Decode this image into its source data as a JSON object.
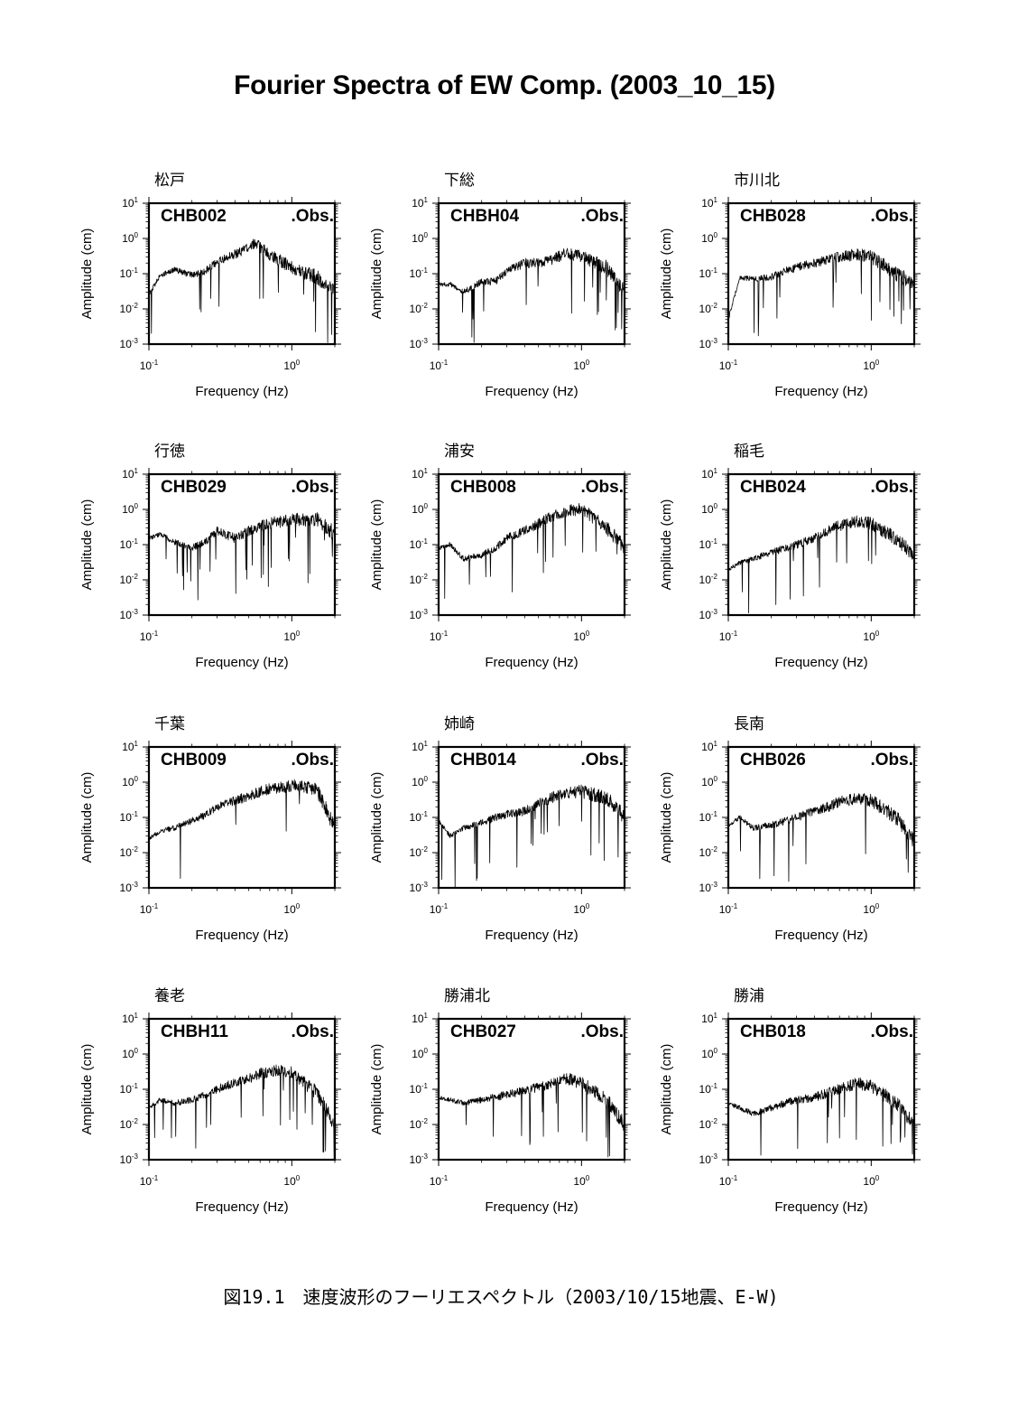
{
  "title": "Fourier Spectra of EW Comp. (2003_10_15)",
  "caption": "図19.1　速度波形のフーリエスペクトル（2003/10/15地震、E-W)",
  "axes": {
    "xlabel": "Frequency (Hz)",
    "ylabel": "Amplitude (cm)",
    "x_scale": "log",
    "y_scale": "log",
    "xlim": [
      0.1,
      2.0
    ],
    "ylim": [
      0.001,
      10
    ],
    "x_tick_labels": [
      {
        "base": "10",
        "exp": "-1"
      },
      {
        "base": "10",
        "exp": "0"
      }
    ],
    "y_tick_labels": [
      {
        "base": "10",
        "exp": "1"
      },
      {
        "base": "10",
        "exp": "0"
      },
      {
        "base": "10",
        "exp": "-1"
      },
      {
        "base": "10",
        "exp": "-2"
      },
      {
        "base": "10",
        "exp": "-3"
      }
    ],
    "series_label": ".Obs."
  },
  "chart_data": [
    {
      "type": "line",
      "station": "松戸",
      "code": "CHB002",
      "x": [
        0.1,
        0.12,
        0.15,
        0.2,
        0.25,
        0.3,
        0.4,
        0.5,
        0.55,
        0.7,
        1.0,
        1.5,
        2.0
      ],
      "y": [
        0.025,
        0.09,
        0.13,
        0.09,
        0.12,
        0.22,
        0.35,
        0.55,
        0.75,
        0.35,
        0.15,
        0.08,
        0.03
      ]
    },
    {
      "type": "line",
      "station": "下総",
      "code": "CHBH04",
      "x": [
        0.1,
        0.12,
        0.15,
        0.2,
        0.25,
        0.3,
        0.4,
        0.5,
        0.6,
        0.8,
        1.0,
        1.5,
        2.0
      ],
      "y": [
        0.05,
        0.05,
        0.03,
        0.06,
        0.06,
        0.12,
        0.2,
        0.2,
        0.22,
        0.4,
        0.3,
        0.15,
        0.03
      ]
    },
    {
      "type": "line",
      "station": "市川北",
      "code": "CHB028",
      "x": [
        0.1,
        0.12,
        0.15,
        0.2,
        0.25,
        0.3,
        0.4,
        0.5,
        0.6,
        0.8,
        1.0,
        1.5,
        2.0
      ],
      "y": [
        0.005,
        0.08,
        0.07,
        0.08,
        0.12,
        0.15,
        0.2,
        0.25,
        0.3,
        0.35,
        0.3,
        0.1,
        0.05
      ]
    },
    {
      "type": "line",
      "station": "行徳",
      "code": "CHB029",
      "x": [
        0.1,
        0.12,
        0.15,
        0.2,
        0.25,
        0.3,
        0.4,
        0.5,
        0.6,
        0.8,
        1.0,
        1.5,
        2.0
      ],
      "y": [
        0.15,
        0.2,
        0.12,
        0.08,
        0.12,
        0.25,
        0.15,
        0.25,
        0.35,
        0.45,
        0.5,
        0.55,
        0.2
      ]
    },
    {
      "type": "line",
      "station": "浦安",
      "code": "CHB008",
      "x": [
        0.1,
        0.12,
        0.15,
        0.2,
        0.25,
        0.3,
        0.4,
        0.5,
        0.6,
        0.8,
        1.0,
        1.5,
        2.0
      ],
      "y": [
        0.08,
        0.1,
        0.04,
        0.05,
        0.08,
        0.15,
        0.25,
        0.4,
        0.6,
        0.9,
        1.0,
        0.3,
        0.08
      ]
    },
    {
      "type": "line",
      "station": "稲毛",
      "code": "CHB024",
      "x": [
        0.1,
        0.12,
        0.15,
        0.2,
        0.25,
        0.3,
        0.4,
        0.5,
        0.6,
        0.8,
        1.0,
        1.5,
        2.0
      ],
      "y": [
        0.02,
        0.03,
        0.04,
        0.06,
        0.08,
        0.1,
        0.15,
        0.25,
        0.35,
        0.45,
        0.4,
        0.15,
        0.05
      ]
    },
    {
      "type": "line",
      "station": "千葉",
      "code": "CHB009",
      "x": [
        0.1,
        0.12,
        0.15,
        0.2,
        0.25,
        0.3,
        0.4,
        0.5,
        0.6,
        0.8,
        1.0,
        1.5,
        2.0
      ],
      "y": [
        0.025,
        0.04,
        0.05,
        0.08,
        0.12,
        0.2,
        0.3,
        0.4,
        0.55,
        0.7,
        0.8,
        0.6,
        0.05
      ]
    },
    {
      "type": "line",
      "station": "姉崎",
      "code": "CHB014",
      "x": [
        0.1,
        0.12,
        0.15,
        0.2,
        0.25,
        0.3,
        0.4,
        0.5,
        0.6,
        0.8,
        1.0,
        1.5,
        2.0
      ],
      "y": [
        0.08,
        0.03,
        0.05,
        0.07,
        0.1,
        0.12,
        0.15,
        0.25,
        0.35,
        0.5,
        0.55,
        0.35,
        0.1
      ]
    },
    {
      "type": "line",
      "station": "長南",
      "code": "CHB026",
      "x": [
        0.1,
        0.12,
        0.15,
        0.2,
        0.25,
        0.3,
        0.4,
        0.5,
        0.6,
        0.8,
        1.0,
        1.5,
        2.0
      ],
      "y": [
        0.06,
        0.1,
        0.05,
        0.06,
        0.08,
        0.1,
        0.15,
        0.2,
        0.28,
        0.35,
        0.3,
        0.1,
        0.02
      ]
    },
    {
      "type": "line",
      "station": "養老",
      "code": "CHBH11",
      "x": [
        0.1,
        0.12,
        0.15,
        0.2,
        0.25,
        0.3,
        0.4,
        0.5,
        0.6,
        0.8,
        1.0,
        1.5,
        2.0
      ],
      "y": [
        0.03,
        0.05,
        0.04,
        0.05,
        0.07,
        0.1,
        0.15,
        0.2,
        0.28,
        0.35,
        0.3,
        0.08,
        0.01
      ]
    },
    {
      "type": "line",
      "station": "勝浦北",
      "code": "CHB027",
      "x": [
        0.1,
        0.12,
        0.15,
        0.2,
        0.25,
        0.3,
        0.4,
        0.5,
        0.6,
        0.8,
        1.0,
        1.5,
        2.0
      ],
      "y": [
        0.06,
        0.05,
        0.04,
        0.05,
        0.06,
        0.07,
        0.09,
        0.12,
        0.14,
        0.2,
        0.15,
        0.05,
        0.01
      ]
    },
    {
      "type": "line",
      "station": "勝浦",
      "code": "CHB018",
      "x": [
        0.1,
        0.12,
        0.15,
        0.2,
        0.25,
        0.3,
        0.4,
        0.5,
        0.6,
        0.8,
        1.0,
        1.5,
        2.0
      ],
      "y": [
        0.04,
        0.03,
        0.02,
        0.03,
        0.04,
        0.05,
        0.06,
        0.08,
        0.1,
        0.15,
        0.12,
        0.04,
        0.01
      ]
    }
  ]
}
